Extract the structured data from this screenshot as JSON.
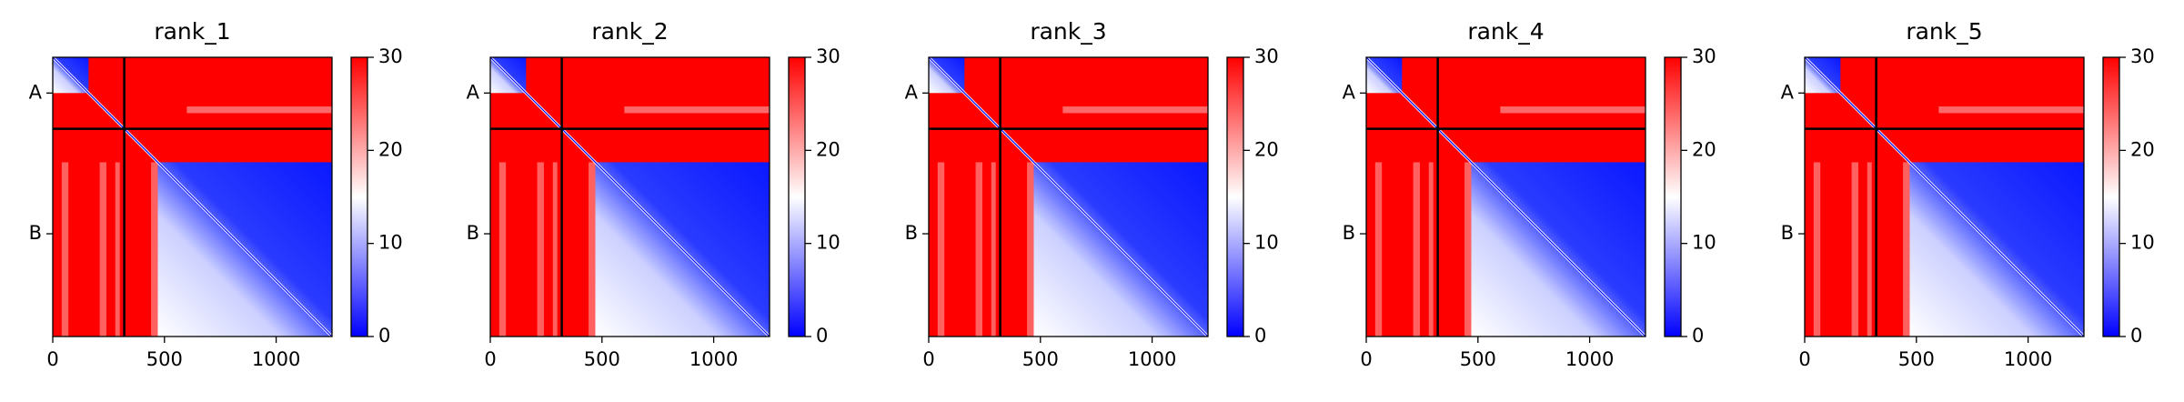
{
  "chart_data": {
    "type": "heatmap",
    "colormap": "bwr",
    "xlim": [
      0,
      1250
    ],
    "ylim": [
      1250,
      0
    ],
    "x_ticks": [
      0,
      500,
      1000
    ],
    "y_ticks": [
      {
        "value": 160,
        "label": "A"
      },
      {
        "value": 790,
        "label": "B"
      }
    ],
    "chain_boundary": 320,
    "colorbar": {
      "min": 0,
      "max": 30,
      "ticks": [
        0,
        10,
        20,
        30
      ]
    },
    "panels": [
      {
        "title": "rank_1"
      },
      {
        "title": "rank_2"
      },
      {
        "title": "rank_3"
      },
      {
        "title": "rank_4"
      },
      {
        "title": "rank_5"
      }
    ]
  }
}
